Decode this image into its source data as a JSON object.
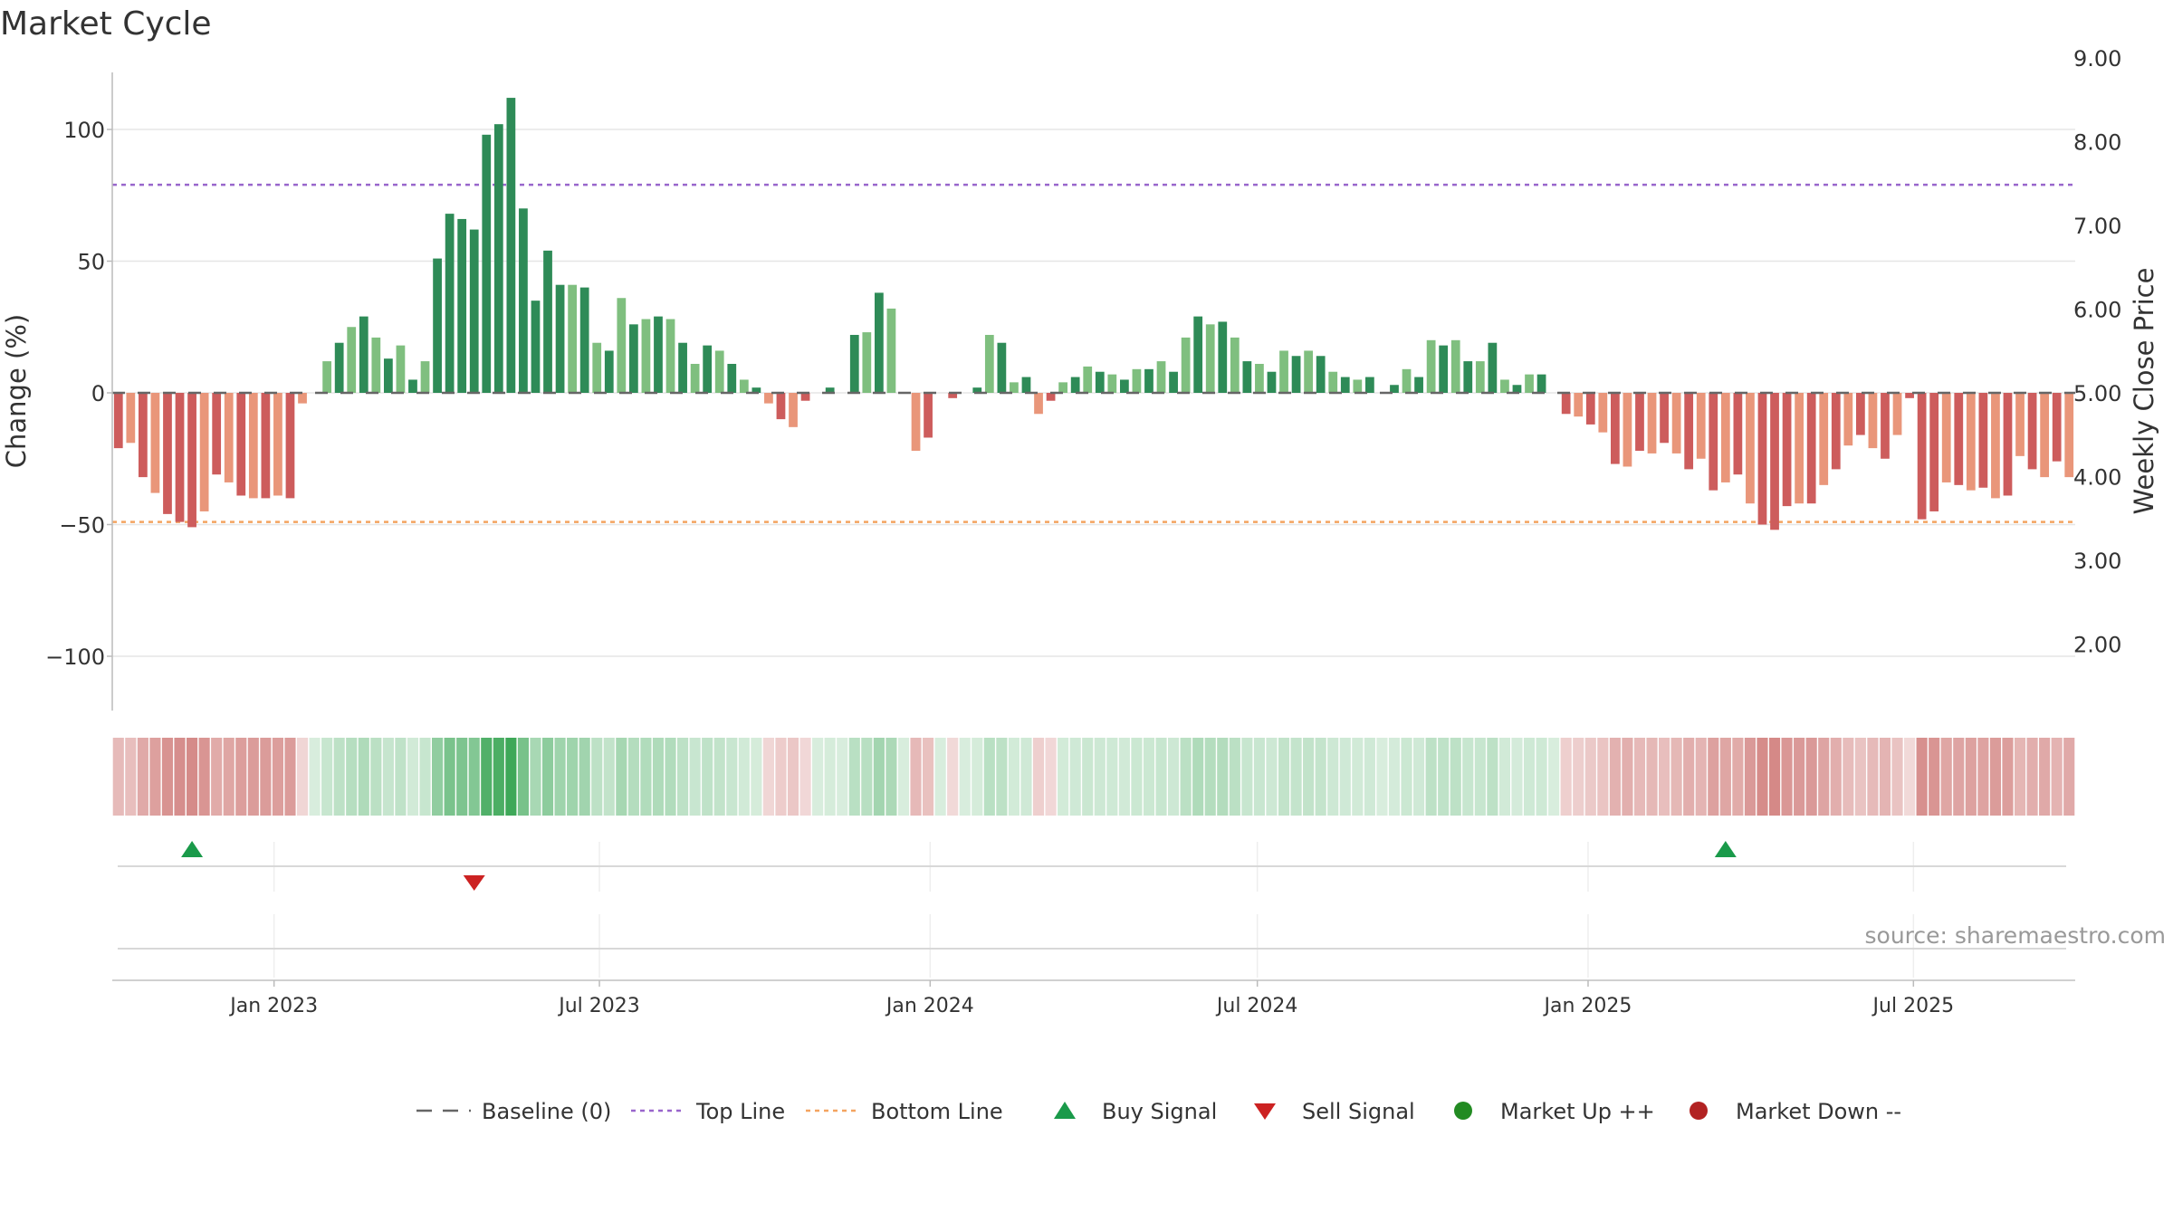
{
  "chart_data": {
    "type": "bar",
    "title": "Market Cycle",
    "ylabel_left": "Change (%)",
    "ylabel_right": "Weekly Close Price",
    "ylim_left": [
      -121,
      121
    ],
    "ylim_right": [
      1.62,
      9.12
    ],
    "left_ticks": [
      100,
      50,
      0,
      -50,
      -100
    ],
    "left_tick_labels": [
      "100",
      "50",
      "0",
      "−50",
      "−100"
    ],
    "right_ticks": [
      9,
      8,
      7,
      6,
      5,
      4,
      3,
      2
    ],
    "right_tick_labels": [
      "9.00",
      "8.00",
      "7.00",
      "6.00",
      "5.00",
      "4.00",
      "3.00",
      "2.00"
    ],
    "top_line": 79,
    "bottom_line": -49,
    "date_start": "2022-10-03",
    "date_end": "2025-09-29",
    "date_ticks": [
      {
        "date": "2023-01-01",
        "label": "Jan 2023"
      },
      {
        "date": "2023-07-01",
        "label": "Jul 2023"
      },
      {
        "date": "2024-01-01",
        "label": "Jan 2024"
      },
      {
        "date": "2024-07-01",
        "label": "Jul 2024"
      },
      {
        "date": "2025-01-01",
        "label": "Jan 2025"
      },
      {
        "date": "2025-07-01",
        "label": "Jul 2025"
      }
    ],
    "values": [
      -21,
      -19,
      -32,
      -38,
      -46,
      -49,
      -51,
      -45,
      -31,
      -34,
      -39,
      -40,
      -40,
      -39,
      -40,
      -4,
      0,
      12,
      19,
      25,
      29,
      21,
      13,
      18,
      5,
      12,
      51,
      68,
      66,
      62,
      98,
      102,
      112,
      70,
      35,
      54,
      41,
      41,
      40,
      19,
      16,
      36,
      26,
      28,
      29,
      28,
      19,
      11,
      18,
      16,
      11,
      5,
      2,
      -4,
      -10,
      -13,
      -3,
      0,
      2,
      0,
      22,
      23,
      38,
      32,
      0,
      -22,
      -17,
      0,
      -2,
      0,
      2,
      22,
      19,
      4,
      6,
      -8,
      -3,
      4,
      6,
      10,
      8,
      7,
      5,
      9,
      9,
      12,
      8,
      21,
      29,
      26,
      27,
      21,
      12,
      11,
      8,
      16,
      14,
      16,
      14,
      8,
      6,
      5,
      6,
      0,
      3,
      9,
      6,
      20,
      18,
      20,
      12,
      12,
      19,
      5,
      3,
      7,
      7,
      0,
      -8,
      -9,
      -12,
      -15,
      -27,
      -28,
      -22,
      -23,
      -19,
      -23,
      -29,
      -25,
      -37,
      -34,
      -31,
      -42,
      -50,
      -52,
      -43,
      -42,
      -42,
      -35,
      -29,
      -20,
      -16,
      -21,
      -25,
      -16,
      -2,
      -48,
      -45,
      -34,
      -35,
      -37,
      -36,
      -40,
      -39,
      -24,
      -29,
      -32,
      -26,
      -32
    ],
    "signals": [
      {
        "type": "buy",
        "date": "2022-11-14"
      },
      {
        "type": "sell",
        "date": "2023-04-24"
      },
      {
        "type": "buy",
        "date": "2025-04-07"
      }
    ],
    "legend": [
      {
        "key": "baseline",
        "label": "Baseline (0)"
      },
      {
        "key": "top",
        "label": "Top Line"
      },
      {
        "key": "bottom",
        "label": "Bottom Line"
      },
      {
        "key": "buy",
        "label": "Buy Signal"
      },
      {
        "key": "sell",
        "label": "Sell Signal"
      },
      {
        "key": "up",
        "label": "Market Up ++"
      },
      {
        "key": "down",
        "label": "Market Down --"
      }
    ],
    "legend_position": "bottom-center",
    "source": "source: sharemaestro.com",
    "grid": true
  },
  "colors": {
    "up_strong": "#2e8b57",
    "up_light": "#7fbf7f",
    "down_strong": "#cd5c5c",
    "down_light": "#e9967a",
    "top_line": "#9966cc",
    "bottom_line": "#f4a460",
    "buy": "#1a9a4a",
    "sell": "#cc2222",
    "market_up": "#228b22",
    "market_down": "#b22222",
    "baseline": "#666666"
  }
}
